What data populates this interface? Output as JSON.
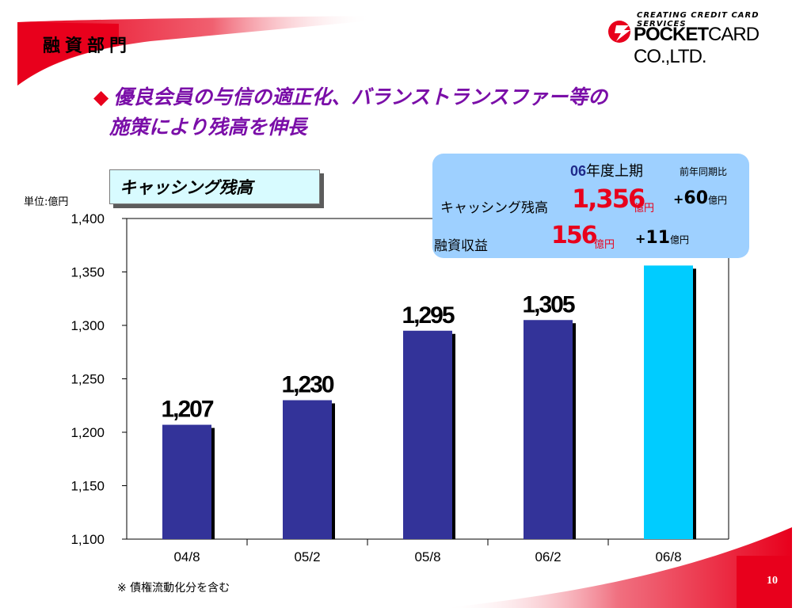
{
  "header": {
    "section_title": "融資部門"
  },
  "logo": {
    "tagline": "CREATING CREDIT CARD SERVICES",
    "name_bold": "POCKET",
    "name_rest": "CARD CO.,LTD."
  },
  "headline": {
    "bullet": "◆",
    "line1": "優良会員の与信の適正化、バランストランスファー等の",
    "line2": "施策により残高を伸長"
  },
  "chart_label": "キャッシング残高",
  "unit_label": "単位:億円",
  "info_box": {
    "period_num": "06",
    "period_text": "年度上期",
    "comparison_header": "前年同期比",
    "rows": [
      {
        "label": "キャッシング残高",
        "value": "1,356",
        "unit": "億円",
        "change_sign": "+",
        "change": "60",
        "change_unit": "億円"
      },
      {
        "label": "融資収益",
        "value": "156",
        "unit": "億円",
        "change_sign": "+",
        "change": "11",
        "change_unit": "億円"
      }
    ]
  },
  "chart_data": {
    "type": "bar",
    "categories": [
      "04/8",
      "05/2",
      "05/8",
      "06/2",
      "06/8"
    ],
    "values": [
      1207,
      1230,
      1295,
      1305,
      1356
    ],
    "data_labels": [
      "1,207",
      "1,230",
      "1,295",
      "1,305",
      ""
    ],
    "ylim": [
      1100,
      1400
    ],
    "yticks": [
      1100,
      1150,
      1200,
      1250,
      1300,
      1350,
      1400
    ],
    "ytick_labels": [
      "1,100",
      "1,150",
      "1,200",
      "1,250",
      "1,300",
      "1,350",
      "1,400"
    ],
    "grid": false,
    "colors": {
      "bar": "#333399",
      "bar_highlight": "#00ccff",
      "shadow": "#000000"
    },
    "highlight_index": 4
  },
  "footnote": "※ 債権流動化分を含む",
  "page_number": "10",
  "colors": {
    "accent_red": "#e8001c",
    "headline_purple": "#7a0ea8",
    "info_box_bg": "#9ed0ff"
  }
}
